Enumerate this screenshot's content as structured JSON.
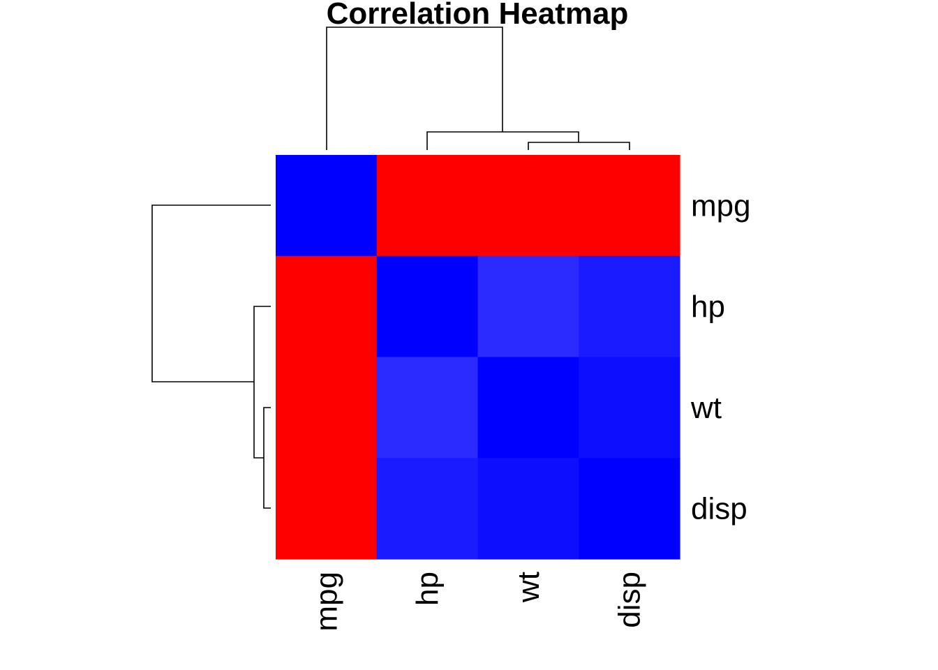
{
  "chart_data": {
    "type": "heatmap",
    "title": "Correlation Heatmap",
    "row_labels": [
      "mpg",
      "hp",
      "wt",
      "disp"
    ],
    "col_labels": [
      "mpg",
      "hp",
      "wt",
      "disp"
    ],
    "values": [
      [
        1.0,
        -0.78,
        -0.87,
        -0.85
      ],
      [
        -0.78,
        1.0,
        0.66,
        0.79
      ],
      [
        -0.87,
        0.66,
        1.0,
        0.89
      ],
      [
        -0.85,
        0.79,
        0.89,
        1.0
      ]
    ],
    "color_scale": {
      "low": "#FF0000",
      "high": "#0000FF"
    },
    "row_dendrogram": {
      "merges": [
        [
          "wt",
          "disp"
        ],
        [
          "hp",
          [
            "wt",
            "disp"
          ]
        ],
        [
          "mpg",
          [
            "hp",
            [
              "wt",
              "disp"
            ]
          ]
        ]
      ]
    },
    "col_dendrogram": {
      "merges": [
        [
          "wt",
          "disp"
        ],
        [
          "hp",
          [
            "wt",
            "disp"
          ]
        ],
        [
          "mpg",
          [
            "hp",
            [
              "wt",
              "disp"
            ]
          ]
        ]
      ]
    }
  }
}
